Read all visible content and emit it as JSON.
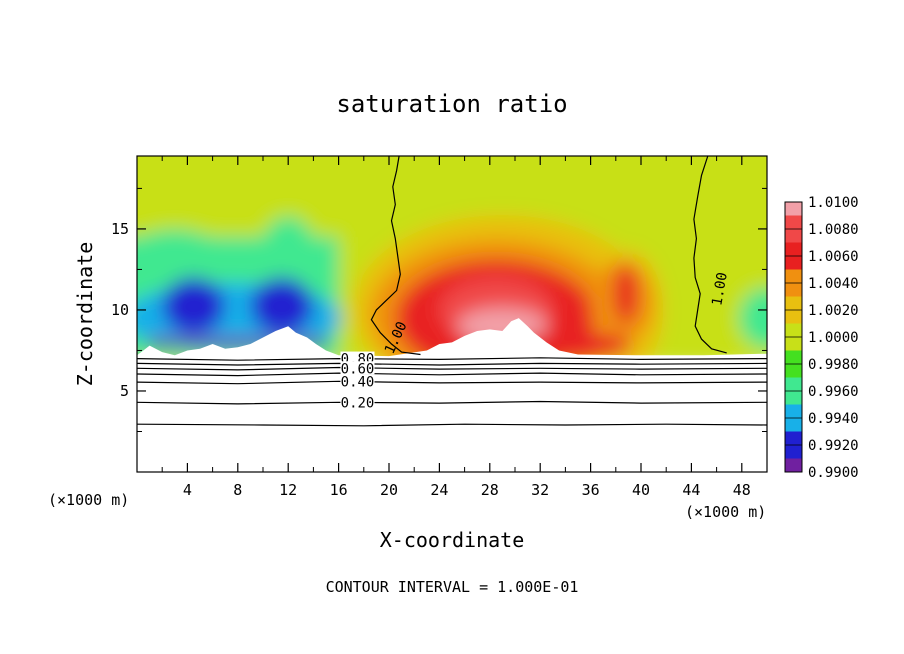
{
  "chart_data": {
    "type": "heatmap",
    "title": "saturation ratio",
    "xlabel": "X-coordinate",
    "ylabel": "Z-coordinate",
    "x_unit_left": "(×1000 m)",
    "x_unit_right": "(×1000 m)",
    "xlim": [
      0,
      50
    ],
    "ylim": [
      0,
      19.5
    ],
    "x_ticks": [
      4,
      8,
      12,
      16,
      20,
      24,
      28,
      32,
      36,
      40,
      44,
      48
    ],
    "y_ticks": [
      5,
      10,
      15
    ],
    "footer": "CONTOUR INTERVAL = 1.000E-01",
    "colorbar": {
      "labels": [
        "1.0100",
        "1.0080",
        "1.0060",
        "1.0040",
        "1.0020",
        "1.0000",
        "0.9980",
        "0.9960",
        "0.9940",
        "0.9920",
        "0.9900"
      ],
      "colors": [
        "#f2a0a8",
        "#f04848",
        "#e82020",
        "#f09010",
        "#e8c010",
        "#c8e018",
        "#44e020",
        "#40e890",
        "#18b0e8",
        "#2020d0",
        "#7020a0"
      ]
    },
    "contours": [
      {
        "label": "1.00",
        "level": 1.0
      },
      {
        "label": "0.80",
        "level": 0.8
      },
      {
        "label": "0.60",
        "level": 0.6
      },
      {
        "label": "0.40",
        "level": 0.4
      },
      {
        "label": "0.20",
        "level": 0.2
      }
    ],
    "field_features": [
      {
        "kind": "blob",
        "value": 0.992,
        "x": [
          2,
          7
        ],
        "z": [
          8.5,
          12
        ]
      },
      {
        "kind": "blob",
        "value": 0.992,
        "x": [
          9,
          14
        ],
        "z": [
          8.5,
          12
        ]
      },
      {
        "kind": "blob",
        "value": 1.008,
        "x": [
          24,
          33
        ],
        "z": [
          8,
          12
        ]
      },
      {
        "kind": "blob",
        "value": 1.004,
        "x": [
          36,
          41
        ],
        "z": [
          8,
          13
        ]
      }
    ]
  }
}
